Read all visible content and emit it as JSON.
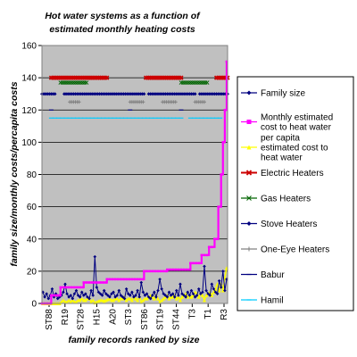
{
  "chart_data": {
    "type": "line",
    "title_lines": [
      "Hot water systems as a function of",
      "estimated monthly heating costs"
    ],
    "xlabel": "family records ranked by size",
    "ylabel": "family size/monthly costs/percapita costs",
    "ylim": [
      0,
      160
    ],
    "yticks": [
      0,
      20,
      40,
      60,
      80,
      100,
      120,
      140,
      160
    ],
    "xtick_labels": [
      "ST88",
      "R19",
      "ST28",
      "H15",
      "A20",
      "ST3",
      "ST86",
      "ST19",
      "ST44",
      "T3",
      "T1",
      "R3"
    ],
    "grid": true,
    "plot_background": "#c0c0c0",
    "legend_position": "right",
    "n_records": 200,
    "series": [
      {
        "name": "Family size",
        "type": "line",
        "color": "#000080",
        "marker": "diamond",
        "sampled_values": [
          7,
          4,
          6,
          3,
          5,
          9,
          4,
          6,
          3,
          4,
          5,
          7,
          12,
          6,
          4,
          5,
          3,
          6,
          8,
          5,
          4,
          7,
          5,
          6,
          4,
          3,
          8,
          5,
          29,
          10,
          7,
          6,
          5,
          8,
          6,
          5,
          4,
          6,
          7,
          4,
          5,
          8,
          5,
          4,
          3,
          9,
          6,
          5,
          7,
          4,
          5,
          8,
          4,
          13,
          7,
          5,
          6,
          4,
          3,
          5,
          7,
          4,
          8,
          15,
          9,
          6,
          5,
          4,
          7,
          5,
          6,
          4,
          8,
          5,
          12,
          6,
          5,
          4,
          7,
          5,
          8,
          6,
          4,
          5,
          9,
          6,
          7,
          23,
          8,
          6,
          5,
          12,
          9,
          7,
          6,
          14,
          10,
          20,
          8,
          15
        ]
      },
      {
        "name": "Monthly estimated cost to heat water",
        "type": "step",
        "color": "#ff00ff",
        "marker": "square",
        "segments": [
          {
            "from": 0,
            "to": 10,
            "value": 0
          },
          {
            "from": 10,
            "to": 20,
            "value": 5
          },
          {
            "from": 20,
            "to": 45,
            "value": 10
          },
          {
            "from": 45,
            "to": 70,
            "value": 13
          },
          {
            "from": 70,
            "to": 110,
            "value": 15
          },
          {
            "from": 110,
            "to": 135,
            "value": 20
          },
          {
            "from": 135,
            "to": 160,
            "value": 21
          },
          {
            "from": 160,
            "to": 172,
            "value": 25
          },
          {
            "from": 172,
            "to": 180,
            "value": 30
          },
          {
            "from": 180,
            "to": 186,
            "value": 35
          },
          {
            "from": 186,
            "to": 190,
            "value": 40
          },
          {
            "from": 190,
            "to": 193,
            "value": 60
          },
          {
            "from": 193,
            "to": 195,
            "value": 80
          },
          {
            "from": 195,
            "to": 197,
            "value": 100
          },
          {
            "from": 197,
            "to": 199,
            "value": 120
          },
          {
            "from": 199,
            "to": 200,
            "value": 150
          }
        ]
      },
      {
        "name": "per capita estimated cost to heat water",
        "type": "line",
        "color": "#ffff00",
        "marker": "triangle",
        "sampled_values": [
          0,
          0,
          0,
          0,
          0,
          0,
          0,
          0,
          0,
          0,
          1,
          2,
          1,
          1,
          2,
          1,
          2,
          1,
          1,
          2,
          2,
          3,
          2,
          2,
          3,
          3,
          1,
          2,
          0.5,
          1,
          1.5,
          2,
          2,
          1.5,
          2,
          2.5,
          3,
          2,
          2,
          3,
          3,
          2,
          3,
          3,
          4,
          2,
          3,
          3,
          2,
          4,
          3,
          2,
          4,
          1,
          2,
          3,
          3,
          4,
          5,
          4,
          3,
          5,
          3,
          1,
          2,
          3,
          4,
          5,
          3,
          4,
          4,
          5,
          3,
          4,
          2,
          4,
          5,
          6,
          4,
          5,
          4,
          5,
          7,
          6,
          4,
          6,
          5,
          2,
          5,
          6,
          7,
          5,
          7,
          9,
          12,
          8,
          12,
          8,
          16,
          22
        ]
      }
    ],
    "heater_rows": [
      {
        "name": "Electric Heaters",
        "y": 140,
        "color": "#cc0000",
        "marker": "x-thick",
        "segments": [
          [
            10,
            70
          ],
          [
            112,
            150
          ],
          [
            188,
            200
          ]
        ]
      },
      {
        "name": "Gas Heaters",
        "y": 137,
        "color": "#006400",
        "marker": "x",
        "segments": [
          [
            20,
            48
          ],
          [
            150,
            178
          ]
        ]
      },
      {
        "name": "Stove Heaters",
        "y": 130,
        "color": "#000080",
        "marker": "diamond",
        "segments": [
          [
            0,
            15
          ],
          [
            24,
            110
          ],
          [
            115,
            165
          ],
          [
            170,
            200
          ]
        ]
      },
      {
        "name": "One-Eye Heaters",
        "y": 125,
        "color": "#808080",
        "marker": "plus",
        "segments": [
          [
            30,
            40
          ],
          [
            95,
            110
          ],
          [
            130,
            145
          ],
          [
            165,
            175
          ]
        ]
      },
      {
        "name": "Babur",
        "y": 120,
        "color": "#000080",
        "marker": "dash",
        "segments": [
          [
            10,
            12
          ],
          [
            95,
            97
          ],
          [
            150,
            152
          ]
        ]
      },
      {
        "name": "Hamil",
        "y": 115,
        "color": "#00ccff",
        "marker": "dash",
        "segments": [
          [
            10,
            150
          ],
          [
            160,
            195
          ]
        ]
      }
    ],
    "legend": [
      {
        "label": "Family size",
        "color": "#000080",
        "marker": "diamond"
      },
      {
        "label": "Monthly estimated cost to heat water",
        "color": "#ff00ff",
        "marker": "square"
      },
      {
        "label": "per capita estimated cost to heat water",
        "color": "#ffff00",
        "marker": "triangle"
      },
      {
        "label": "Electric Heaters",
        "color": "#cc0000",
        "marker": "x-thick"
      },
      {
        "label": "Gas Heaters",
        "color": "#006400",
        "marker": "x"
      },
      {
        "label": "Stove Heaters",
        "color": "#000080",
        "marker": "diamond"
      },
      {
        "label": "One-Eye Heaters",
        "color": "#808080",
        "marker": "plus"
      },
      {
        "label": "Babur",
        "color": "#000080",
        "marker": "dash"
      },
      {
        "label": "Hamil",
        "color": "#00ccff",
        "marker": "dash"
      }
    ]
  }
}
